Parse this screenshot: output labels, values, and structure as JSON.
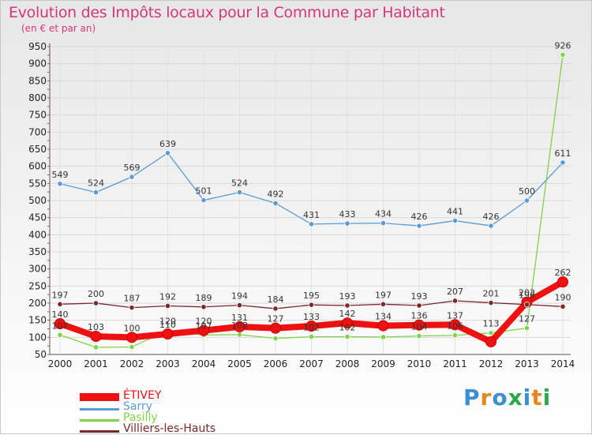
{
  "chart_data": {
    "type": "line",
    "title": "Evolution des Impôts locaux pour la Commune par Habitant",
    "subtitle": "(en € et par an)",
    "xlabel": "",
    "ylabel": "",
    "categories": [
      "2000",
      "2001",
      "2002",
      "2003",
      "2004",
      "2005",
      "2006",
      "2007",
      "2008",
      "2009",
      "2010",
      "2011",
      "2012",
      "2013",
      "2014"
    ],
    "ylim": [
      50,
      950
    ],
    "yticks": [
      "50",
      "100",
      "150",
      "200",
      "250",
      "300",
      "350",
      "400",
      "450",
      "500",
      "550",
      "600",
      "650",
      "700",
      "750",
      "800",
      "850",
      "900",
      "950"
    ],
    "series": [
      {
        "name": "ÉTIVEY",
        "color": "#ee1111",
        "values": [
          140,
          103,
          100,
          110,
          120,
          131,
          127,
          133,
          142,
          134,
          136,
          137,
          87,
          203,
          262
        ],
        "labels": [
          "140",
          "103",
          "100",
          "110",
          "120",
          "131",
          "127",
          "133",
          "142",
          "134",
          "136",
          "137",
          "",
          "203",
          "262"
        ]
      },
      {
        "name": "Sarry",
        "color": "#5b9bd5",
        "values": [
          549,
          524,
          569,
          639,
          501,
          524,
          492,
          431,
          433,
          434,
          426,
          441,
          426,
          500,
          611
        ],
        "labels": [
          "549",
          "524",
          "569",
          "639",
          "501",
          "524",
          "492",
          "431",
          "433",
          "434",
          "426",
          "441",
          "426",
          "500",
          "611"
        ]
      },
      {
        "name": "Pasilly",
        "color": "#7ed348",
        "values": [
          107,
          71,
          72,
          120,
          107,
          108,
          97,
          102,
          102,
          101,
          104,
          106,
          113,
          127,
          926
        ],
        "labels": [
          "107",
          "",
          "",
          "120",
          "107",
          "108",
          "",
          "102",
          "102",
          "",
          "104",
          "106",
          "113",
          "127",
          "926"
        ]
      },
      {
        "name": "Villiers-les-Hauts",
        "color": "#7a2828",
        "values": [
          197,
          200,
          187,
          192,
          189,
          194,
          184,
          195,
          193,
          197,
          193,
          207,
          201,
          196,
          190
        ],
        "labels": [
          "197",
          "200",
          "187",
          "192",
          "189",
          "194",
          "184",
          "195",
          "193",
          "197",
          "193",
          "207",
          "201",
          "196",
          "190"
        ]
      }
    ],
    "legend": [
      "ÉTIVEY",
      "Sarry",
      "Pasilly",
      "Villiers-les-Hauts"
    ],
    "legend_position": "bottom-left",
    "grid": true
  },
  "brand": {
    "logo_text": "Proxiti"
  }
}
